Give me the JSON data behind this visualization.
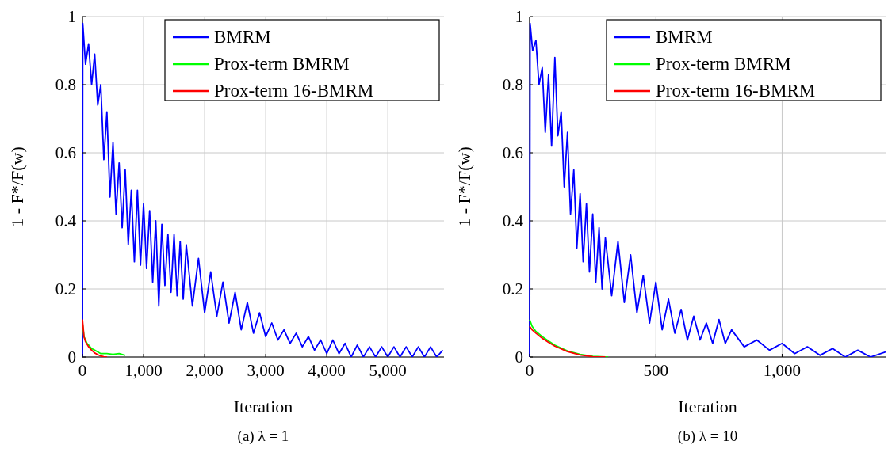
{
  "chart_data": [
    {
      "type": "line",
      "title": "(a) λ = 1",
      "xlabel": "Iteration",
      "ylabel": "1 - F*/F(w)",
      "xlim": [
        0,
        5920
      ],
      "ylim": [
        0,
        1
      ],
      "xticks": [
        {
          "value": 0,
          "label": "0"
        },
        {
          "value": 1000,
          "label": "1,000"
        },
        {
          "value": 2000,
          "label": "2,000"
        },
        {
          "value": 3000,
          "label": "3,000"
        },
        {
          "value": 4000,
          "label": "4,000"
        },
        {
          "value": 5000,
          "label": "5,000"
        }
      ],
      "yticks": [
        0,
        0.2,
        0.4,
        0.6,
        0.8,
        1
      ],
      "grid": true,
      "legend": "top right",
      "marker": "none",
      "line_style": "solid",
      "series": [
        {
          "name": "BMRM",
          "color": "#0000ff",
          "x": [
            0,
            5,
            50,
            100,
            150,
            200,
            250,
            300,
            350,
            400,
            450,
            500,
            550,
            600,
            650,
            700,
            750,
            800,
            850,
            900,
            950,
            1000,
            1050,
            1100,
            1150,
            1200,
            1250,
            1300,
            1350,
            1400,
            1450,
            1500,
            1550,
            1600,
            1650,
            1700,
            1800,
            1900,
            2000,
            2100,
            2200,
            2300,
            2400,
            2500,
            2600,
            2700,
            2800,
            2900,
            3000,
            3100,
            3200,
            3300,
            3400,
            3500,
            3600,
            3700,
            3800,
            3900,
            4000,
            4100,
            4200,
            4300,
            4400,
            4500,
            4600,
            4700,
            4800,
            4900,
            5000,
            5100,
            5200,
            5300,
            5400,
            5500,
            5600,
            5700,
            5800,
            5900
          ],
          "values": [
            0,
            0.98,
            0.86,
            0.92,
            0.8,
            0.89,
            0.74,
            0.8,
            0.58,
            0.72,
            0.47,
            0.63,
            0.42,
            0.57,
            0.38,
            0.55,
            0.33,
            0.49,
            0.28,
            0.49,
            0.27,
            0.45,
            0.26,
            0.43,
            0.22,
            0.4,
            0.15,
            0.39,
            0.21,
            0.36,
            0.19,
            0.36,
            0.18,
            0.34,
            0.17,
            0.33,
            0.15,
            0.29,
            0.13,
            0.25,
            0.12,
            0.22,
            0.1,
            0.19,
            0.08,
            0.16,
            0.07,
            0.13,
            0.06,
            0.1,
            0.05,
            0.08,
            0.04,
            0.07,
            0.03,
            0.06,
            0.02,
            0.05,
            0.01,
            0.05,
            0.01,
            0.04,
            0,
            0.035,
            0,
            0.03,
            0,
            0.03,
            0,
            0.03,
            0,
            0.03,
            0,
            0.03,
            0,
            0.03,
            0,
            0.02
          ]
        },
        {
          "name": "Prox-term BMRM",
          "color": "#00ff00",
          "x": [
            0,
            25,
            50,
            75,
            100,
            150,
            200,
            250,
            300,
            400,
            500,
            600,
            700
          ],
          "values": [
            0.1,
            0.06,
            0.05,
            0.04,
            0.035,
            0.025,
            0.02,
            0.015,
            0.01,
            0.01,
            0.008,
            0.01,
            0.005
          ]
        },
        {
          "name": "Prox-term 16-BMRM",
          "color": "#ff0000",
          "x": [
            0,
            25,
            50,
            100,
            150,
            200,
            250,
            300,
            350,
            400
          ],
          "values": [
            0.11,
            0.06,
            0.045,
            0.03,
            0.02,
            0.012,
            0.007,
            0.003,
            0.001,
            0
          ]
        }
      ]
    },
    {
      "type": "line",
      "title": "(b) λ = 10",
      "xlabel": "Iteration",
      "ylabel": "1 - F*/F(w)",
      "xlim": [
        0,
        1410
      ],
      "ylim": [
        0,
        1
      ],
      "xticks": [
        {
          "value": 0,
          "label": "0"
        },
        500,
        {
          "value": 1000,
          "label": "1,000"
        }
      ],
      "yticks": [
        0,
        0.2,
        0.4,
        0.6,
        0.8,
        1
      ],
      "grid": true,
      "legend": "top right",
      "marker": "none",
      "line_style": "solid",
      "series": [
        {
          "name": "BMRM",
          "color": "#0000ff",
          "x": [
            0,
            2,
            12,
            25,
            37,
            50,
            62,
            75,
            87,
            100,
            112,
            125,
            137,
            150,
            162,
            175,
            187,
            200,
            212,
            225,
            237,
            250,
            262,
            275,
            287,
            300,
            325,
            350,
            375,
            400,
            425,
            450,
            475,
            500,
            525,
            550,
            575,
            600,
            625,
            650,
            675,
            700,
            725,
            750,
            775,
            800,
            850,
            900,
            950,
            1000,
            1050,
            1100,
            1150,
            1200,
            1250,
            1300,
            1350,
            1410
          ],
          "values": [
            0,
            0.98,
            0.9,
            0.93,
            0.8,
            0.85,
            0.66,
            0.83,
            0.62,
            0.88,
            0.65,
            0.72,
            0.5,
            0.66,
            0.42,
            0.55,
            0.32,
            0.48,
            0.28,
            0.45,
            0.25,
            0.42,
            0.22,
            0.38,
            0.2,
            0.35,
            0.18,
            0.34,
            0.16,
            0.3,
            0.13,
            0.24,
            0.1,
            0.22,
            0.08,
            0.17,
            0.07,
            0.14,
            0.05,
            0.12,
            0.05,
            0.1,
            0.04,
            0.11,
            0.04,
            0.08,
            0.03,
            0.05,
            0.02,
            0.04,
            0.01,
            0.03,
            0.005,
            0.025,
            0,
            0.02,
            0,
            0.015
          ]
        },
        {
          "name": "Prox-term BMRM",
          "color": "#00ff00",
          "x": [
            0,
            10,
            25,
            50,
            75,
            100,
            150,
            200,
            250,
            310
          ],
          "values": [
            0.11,
            0.09,
            0.075,
            0.06,
            0.047,
            0.035,
            0.018,
            0.008,
            0.002,
            0
          ]
        },
        {
          "name": "Prox-term 16-BMRM",
          "color": "#ff0000",
          "x": [
            0,
            10,
            25,
            50,
            75,
            100,
            150,
            200,
            250,
            300
          ],
          "values": [
            0.09,
            0.08,
            0.07,
            0.055,
            0.043,
            0.032,
            0.016,
            0.006,
            0.001,
            0
          ]
        }
      ]
    }
  ]
}
